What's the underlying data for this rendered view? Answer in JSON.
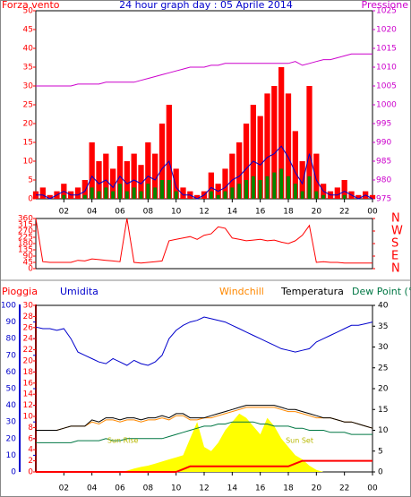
{
  "chart_data": [
    {
      "type": "bar",
      "title": "24 hour graph day : 05 Aprile 2014",
      "x": [
        0,
        0.5,
        1,
        1.5,
        2,
        2.5,
        3,
        3.5,
        4,
        4.5,
        5,
        5.5,
        6,
        6.5,
        7,
        7.5,
        8,
        8.5,
        9,
        9.5,
        10,
        10.5,
        11,
        11.5,
        12,
        12.5,
        13,
        13.5,
        14,
        14.5,
        15,
        15.5,
        16,
        16.5,
        17,
        17.5,
        18,
        18.5,
        19,
        19.5,
        20,
        20.5,
        21,
        21.5,
        22,
        22.5,
        23,
        23.5,
        24
      ],
      "xlim": [
        0,
        24
      ],
      "xticks": [
        {
          "value": 2,
          "label": "02"
        },
        {
          "value": 4,
          "label": "04"
        },
        {
          "value": 6,
          "label": "06"
        },
        {
          "value": 8,
          "label": "08"
        },
        10,
        12,
        14,
        16,
        18,
        20,
        22,
        {
          "value": 24,
          "label": "00"
        }
      ],
      "ylim": [
        0,
        50
      ],
      "yticks": [
        0,
        5,
        10,
        15,
        20,
        25,
        30,
        35,
        40,
        45,
        50
      ],
      "y2lim": [
        975,
        1025
      ],
      "y2ticks": [
        975,
        980,
        985,
        990,
        995,
        1000,
        1005,
        1010,
        1015,
        1020,
        1025
      ],
      "axis_colors": {
        "y": "#ff0000",
        "y2": "#cc00cc"
      },
      "series": [
        {
          "name": "Forza vento",
          "color": "#ff0000",
          "mark": "bar",
          "values": [
            2,
            3,
            1,
            2,
            4,
            2,
            3,
            5,
            15,
            10,
            12,
            8,
            14,
            10,
            12,
            9,
            15,
            12,
            20,
            25,
            8,
            3,
            2,
            1,
            2,
            7,
            4,
            8,
            12,
            15,
            20,
            25,
            22,
            28,
            30,
            35,
            28,
            18,
            10,
            30,
            12,
            4,
            2,
            3,
            5,
            2,
            1,
            2,
            1
          ]
        },
        {
          "color": "#008800",
          "mark": "bar",
          "values": [
            0,
            0,
            0,
            0,
            1,
            0,
            0,
            1,
            3,
            2,
            3,
            2,
            4,
            2,
            3,
            2,
            4,
            3,
            5,
            5,
            2,
            0,
            0,
            0,
            0,
            2,
            1,
            2,
            3,
            4,
            5,
            6,
            5,
            6,
            7,
            8,
            6,
            4,
            2,
            6,
            2,
            1,
            0,
            0,
            1,
            0,
            0,
            0,
            0
          ]
        },
        {
          "color": "#0000cc",
          "mark": "line",
          "values": [
            1,
            1,
            0,
            1,
            2,
            1,
            1,
            2,
            6,
            4,
            5,
            3,
            6,
            4,
            5,
            4,
            6,
            5,
            8,
            10,
            3,
            1,
            1,
            0,
            1,
            3,
            2,
            3,
            5,
            6,
            8,
            10,
            9,
            11,
            12,
            14,
            11,
            7,
            4,
            12,
            5,
            2,
            1,
            1,
            2,
            1,
            0,
            1,
            0
          ]
        },
        {
          "name": "Pressione",
          "color": "#cc00cc",
          "mark": "line",
          "axis": "y2",
          "values": [
            1005,
            1005,
            1005,
            1005,
            1005,
            1005,
            1005.5,
            1005.5,
            1005.5,
            1005.5,
            1006,
            1006,
            1006,
            1006,
            1006,
            1006.5,
            1007,
            1007.5,
            1008,
            1008.5,
            1009,
            1009.5,
            1010,
            1010,
            1010,
            1010.5,
            1010.5,
            1011,
            1011,
            1011,
            1011,
            1011,
            1011,
            1011,
            1011,
            1011,
            1011,
            1011.5,
            1010.5,
            1011,
            1011.5,
            1012,
            1012,
            1012.5,
            1013,
            1013.5,
            1013.5,
            1013.5,
            1013.5
          ]
        }
      ]
    },
    {
      "type": "line",
      "x": [
        0,
        0.5,
        1,
        1.5,
        2,
        2.5,
        3,
        3.5,
        4,
        4.5,
        5,
        5.5,
        6,
        6.5,
        7,
        7.5,
        8,
        8.5,
        9,
        9.5,
        10,
        10.5,
        11,
        11.5,
        12,
        12.5,
        13,
        13.5,
        14,
        14.5,
        15,
        15.5,
        16,
        16.5,
        17,
        17.5,
        18,
        18.5,
        19,
        19.5,
        20,
        20.5,
        21,
        21.5,
        22,
        22.5,
        23,
        23.5,
        24
      ],
      "xlim": [
        0,
        24
      ],
      "ylim": [
        0,
        360
      ],
      "yticks": [
        0,
        45,
        90,
        135,
        180,
        225,
        270,
        315,
        360
      ],
      "y2lim": [
        0,
        360
      ],
      "y2ticks": [
        {
          "value": 0,
          "label": "N"
        },
        {
          "value": 90,
          "label": "E"
        },
        {
          "value": 180,
          "label": "S"
        },
        {
          "value": 270,
          "label": "W"
        },
        {
          "value": 360,
          "label": "N"
        }
      ],
      "axis_colors": {
        "y": "#ff0000",
        "y2": "#ff0000"
      },
      "series": [
        {
          "color": "#ff0000",
          "mark": "line",
          "values": [
            360,
            50,
            45,
            45,
            45,
            45,
            60,
            55,
            70,
            65,
            60,
            55,
            50,
            360,
            45,
            40,
            45,
            50,
            55,
            200,
            210,
            220,
            230,
            210,
            240,
            250,
            300,
            290,
            220,
            210,
            200,
            205,
            210,
            200,
            205,
            190,
            180,
            200,
            240,
            310,
            45,
            50,
            45,
            45,
            40,
            40,
            40,
            40,
            40
          ]
        }
      ]
    },
    {
      "type": "line",
      "x": [
        0,
        0.5,
        1,
        1.5,
        2,
        2.5,
        3,
        3.5,
        4,
        4.5,
        5,
        5.5,
        6,
        6.5,
        7,
        7.5,
        8,
        8.5,
        9,
        9.5,
        10,
        10.5,
        11,
        11.5,
        12,
        12.5,
        13,
        13.5,
        14,
        14.5,
        15,
        15.5,
        16,
        16.5,
        17,
        17.5,
        18,
        18.5,
        19,
        19.5,
        20,
        20.5,
        21,
        21.5,
        22,
        22.5,
        23,
        23.5,
        24
      ],
      "xlim": [
        0,
        24
      ],
      "xticks": [
        {
          "value": 2,
          "label": "02"
        },
        {
          "value": 4,
          "label": "04"
        },
        {
          "value": 6,
          "label": "06"
        },
        {
          "value": 8,
          "label": "08"
        },
        10,
        12,
        14,
        16,
        18,
        20,
        22,
        {
          "value": 24,
          "label": "00"
        }
      ],
      "ylim": [
        0,
        100
      ],
      "yticks": [
        0,
        10,
        20,
        30,
        40,
        50,
        60,
        70,
        80,
        90,
        100
      ],
      "y2lim": [
        0,
        40
      ],
      "y2ticks": [
        0,
        5,
        10,
        15,
        20,
        25,
        30,
        35,
        40
      ],
      "y3lim": [
        0,
        30
      ],
      "y3ticks": [
        0,
        2,
        4,
        6,
        8,
        10,
        12,
        14,
        16,
        18,
        20,
        22,
        24,
        26,
        28,
        30
      ],
      "axis_colors": {
        "y": "#0000cc",
        "y2": "#000000",
        "y3": "#ff0000"
      },
      "annotations": [
        "Sun Rise",
        "Sun Set"
      ],
      "series": [
        {
          "name": "Pioggia",
          "color": "#ff0000",
          "mark": "line",
          "axis": "y3",
          "values": [
            0,
            0,
            0,
            0,
            0,
            0,
            0,
            0,
            0,
            0,
            0,
            0,
            0,
            0,
            0,
            0,
            0,
            0,
            0,
            0,
            0,
            0.5,
            1,
            1,
            1,
            1,
            1,
            1,
            1,
            1,
            1,
            1,
            1,
            1,
            1,
            1,
            1,
            1.5,
            2,
            2,
            2,
            2,
            2,
            2,
            2,
            2,
            2,
            2,
            2
          ]
        },
        {
          "name": "Umidita",
          "color": "#0000cc",
          "mark": "line",
          "values": [
            87,
            86,
            86,
            85,
            86,
            80,
            72,
            70,
            68,
            66,
            65,
            68,
            66,
            64,
            67,
            65,
            64,
            66,
            70,
            80,
            85,
            88,
            90,
            91,
            93,
            92,
            91,
            90,
            88,
            86,
            84,
            82,
            80,
            78,
            76,
            74,
            73,
            72,
            73,
            74,
            78,
            80,
            82,
            84,
            86,
            88,
            88,
            89,
            90
          ]
        },
        {
          "name": "Windchill",
          "color": "#ff8800",
          "mark": "line",
          "axis": "y2",
          "values": [
            10,
            10,
            10,
            10,
            10.5,
            11,
            11,
            11,
            12,
            11.5,
            12.5,
            12.5,
            12,
            12.5,
            12.5,
            12,
            12.5,
            12.5,
            13,
            12.5,
            13.5,
            13.5,
            12.5,
            12.5,
            13,
            13,
            13.5,
            14,
            14.5,
            15,
            15.5,
            15.5,
            15.5,
            15.5,
            15.5,
            15,
            14.5,
            14.5,
            14,
            13.5,
            13,
            13,
            13,
            12.5,
            12,
            12,
            11.5,
            11,
            10.5
          ]
        },
        {
          "name": "Temperatura",
          "color": "#000000",
          "mark": "line",
          "axis": "y2",
          "values": [
            10,
            10,
            10,
            10,
            10.5,
            11,
            11,
            11,
            12.5,
            12,
            13,
            13,
            12.5,
            13,
            13,
            12.5,
            13,
            13,
            13.5,
            13,
            14,
            14,
            13,
            13,
            13,
            13.5,
            14,
            14.5,
            15,
            15.5,
            16,
            16,
            16,
            16,
            16,
            15.5,
            15,
            15,
            14.5,
            14,
            13.5,
            13,
            13,
            12.5,
            12,
            12,
            11.5,
            11,
            10.5
          ]
        },
        {
          "name": "Dew Point (°C",
          "color": "#007744",
          "mark": "line",
          "axis": "y2",
          "values": [
            7,
            7,
            7,
            7,
            7,
            7,
            7.5,
            7.5,
            7.5,
            7.5,
            8,
            7.5,
            7.5,
            8,
            8,
            8,
            8,
            8,
            8,
            8.5,
            9,
            9.5,
            10,
            10.5,
            11,
            11,
            11.5,
            11.5,
            12,
            12,
            12,
            12,
            11.5,
            11.5,
            11,
            11,
            11,
            10.5,
            10.5,
            10,
            10,
            10,
            9.5,
            9.5,
            9.5,
            9,
            9,
            9,
            9
          ]
        },
        {
          "color": "#ffff00",
          "mark": "area",
          "axis": "y2",
          "values": [
            0,
            0,
            0,
            0,
            0,
            0,
            0,
            0,
            0,
            0,
            0,
            0,
            0,
            0.3,
            0.8,
            1.2,
            1.5,
            2,
            2.5,
            3,
            3.5,
            4,
            8,
            12,
            6,
            5,
            7,
            10,
            12,
            14,
            13,
            11,
            9,
            13,
            11,
            8,
            6,
            4,
            3,
            1.5,
            0.5,
            0,
            0,
            0,
            0,
            0,
            0,
            0,
            0
          ]
        }
      ]
    }
  ]
}
